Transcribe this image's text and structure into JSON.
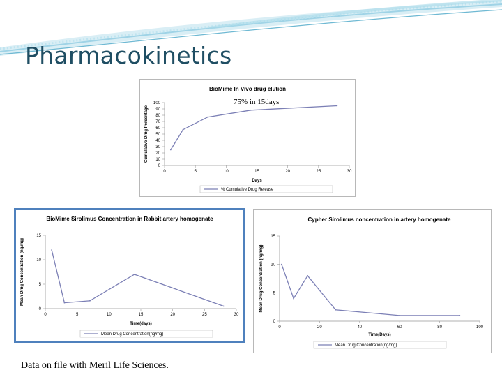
{
  "slide": {
    "title": "Pharmacokinetics",
    "footnote": "Data on file with Meril Life Sciences."
  },
  "colors": {
    "title": "#1f4e63",
    "line": "#7b7fb5",
    "frame": "#4f81bd",
    "swoosh": "#9fd3e6"
  },
  "chart_data": [
    {
      "type": "line",
      "title": "BioMime In Vivo drug elution",
      "xlabel": "Days",
      "ylabel": "Cumulative Drug Percentage",
      "xlim": [
        0,
        30
      ],
      "ylim": [
        0,
        100
      ],
      "xticks": [
        0,
        5,
        10,
        15,
        20,
        25,
        30
      ],
      "yticks": [
        0,
        10,
        20,
        30,
        40,
        50,
        60,
        70,
        80,
        90,
        100
      ],
      "annotation": "75% in 15days",
      "legend_position": "bottom",
      "series": [
        {
          "name": "% Cumulative Drug Release",
          "x": [
            1,
            3,
            7,
            14,
            28
          ],
          "y": [
            25,
            57,
            77,
            88,
            95
          ]
        }
      ]
    },
    {
      "type": "line",
      "title": "BioMime Sirolimus Concentration in Rabbit artery homogenate",
      "xlabel": "Time(days)",
      "ylabel": "Mean Drug Concentration (ng/mg)",
      "xlim": [
        0,
        30
      ],
      "ylim": [
        0,
        15
      ],
      "xticks": [
        0,
        5,
        10,
        15,
        20,
        25,
        30
      ],
      "yticks": [
        0,
        5,
        10,
        15
      ],
      "legend_position": "bottom",
      "series": [
        {
          "name": "Mean Drug Concentration(ng/mg)",
          "x": [
            1,
            3,
            7,
            14,
            28
          ],
          "y": [
            12,
            1.2,
            1.6,
            7,
            0.5
          ]
        }
      ]
    },
    {
      "type": "line",
      "title": "Cypher Sirolimus concentration in artery homogenate",
      "xlabel": "Time(Days)",
      "ylabel": "Mean Drug Concentration (ng/mg)",
      "xlim": [
        0,
        100
      ],
      "ylim": [
        0,
        15
      ],
      "xticks": [
        0,
        20,
        40,
        60,
        80,
        100
      ],
      "yticks": [
        0,
        5,
        10,
        15
      ],
      "legend_position": "bottom",
      "series": [
        {
          "name": "Mean Drug Concentration(ng/mg)",
          "x": [
            1,
            7,
            14,
            28,
            60,
            90
          ],
          "y": [
            10,
            4,
            8,
            2,
            1,
            1
          ]
        }
      ]
    }
  ]
}
